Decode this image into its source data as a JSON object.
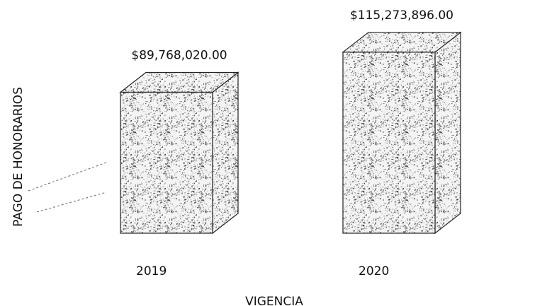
{
  "chart_data": {
    "type": "bar3d",
    "x_label": "VIGENCIA",
    "y_label": "PAGO DE HONORARIOS",
    "categories": [
      "2019",
      "2020"
    ],
    "values": [
      89768020,
      115273896
    ],
    "value_labels": [
      "$89,768,020.00",
      "$115,273,896.00"
    ],
    "color": "#333333",
    "ylim": [
      0,
      135000000
    ]
  }
}
